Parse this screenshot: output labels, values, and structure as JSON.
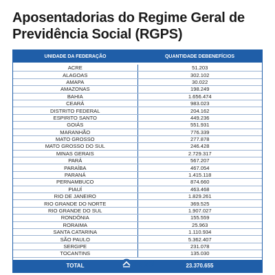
{
  "title": [
    "Aposentadorias do Regime Geral de",
    "Previdência Social (RGPS)"
  ],
  "table": {
    "header": [
      "UNIDADE DA FEDERAÇÃO",
      "QUANTIDADE DEBENEFÍCIOS"
    ],
    "rows": [
      [
        "ACRE",
        "51.203"
      ],
      [
        "ALAGOAS",
        "302.102"
      ],
      [
        "AMAPA",
        "30.022"
      ],
      [
        "AMAZONAS",
        "198.249"
      ],
      [
        "BAHIA",
        "1.656.474"
      ],
      [
        "CEARÁ",
        "983.023"
      ],
      [
        "DISTRITO FEDERAL",
        "204.162"
      ],
      [
        "ESPIRITO SANTO",
        "449.236"
      ],
      [
        "GOIÁS",
        "551.931"
      ],
      [
        "MARANHÃO",
        "776.339"
      ],
      [
        "MATO GROSSO",
        "277.878"
      ],
      [
        "MATO GROSSO DO SUL",
        "246.428"
      ],
      [
        "MINAS GERAIS",
        "2.729.317"
      ],
      [
        "PARÁ",
        "567.207"
      ],
      [
        "PARAÍBA",
        "467.054"
      ],
      [
        "PARANÁ",
        "1.415.118"
      ],
      [
        "PERNAMBUCO",
        "874.660"
      ],
      [
        "PIAUÍ",
        "463.468"
      ],
      [
        "RIO DE JANEIRO",
        "1.829.261"
      ],
      [
        "RIO GRANDE DO NORTE",
        "369.525"
      ],
      [
        "RIO GRANDE DO SUL",
        "1.907.027"
      ],
      [
        "RONDÔNIA",
        "155.559"
      ],
      [
        "RORAIMA",
        "25.963"
      ],
      [
        "SANTA CATARINA",
        "1.110.934"
      ],
      [
        "SÃO PAULO",
        "5.362.407"
      ],
      [
        "SERGIPE",
        "231.078"
      ],
      [
        "TOCANTINS",
        "135.030"
      ]
    ],
    "total": [
      "TOTAL",
      "23.370.655"
    ]
  },
  "footer": {
    "logo": "INSS"
  }
}
